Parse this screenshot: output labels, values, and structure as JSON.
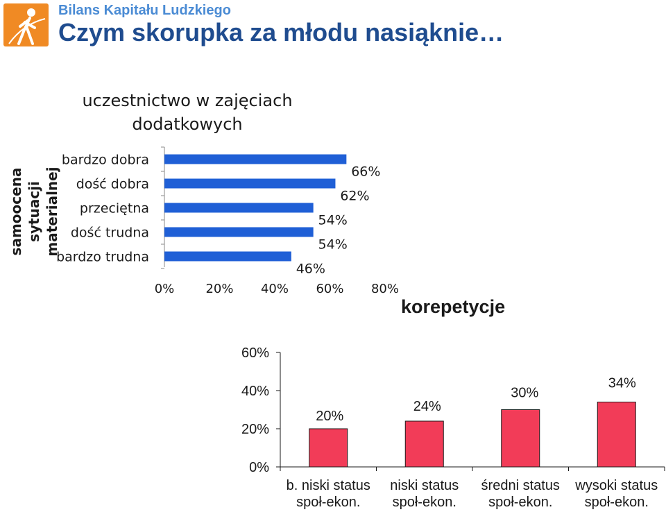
{
  "header": {
    "brand": "Bilans Kapitału Ludzkiego",
    "headline": "Czym skorupka za młodu nasiąknie…",
    "logo_icon": "walking-figure-logo",
    "logo_color": "#f08a24"
  },
  "side_label": "samoocena sytuacji materialnej",
  "chart_data": [
    {
      "type": "bar",
      "orientation": "horizontal",
      "title": "uczestnictwo w zajęciach dodatkowych",
      "ylabel": "samoocena sytuacji materialnej",
      "xlabel": "",
      "categories": [
        "bardzo dobra",
        "dość dobra",
        "przeciętna",
        "dość trudna",
        "bardzo trudna"
      ],
      "values": [
        66,
        62,
        54,
        54,
        46
      ],
      "value_labels": [
        "66%",
        "62%",
        "54%",
        "54%",
        "46%"
      ],
      "xlim": [
        0,
        80
      ],
      "ticks": [
        0,
        20,
        40,
        60,
        80
      ],
      "tick_labels": [
        "0%",
        "20%",
        "40%",
        "60%",
        "80%"
      ],
      "grid": false,
      "color": "#1f5fd6"
    },
    {
      "type": "bar",
      "orientation": "vertical",
      "title": "korepetycje",
      "xlabel": "",
      "ylabel": "",
      "categories": [
        [
          "b. niski status",
          "społ-ekon."
        ],
        [
          "niski status",
          "społ-ekon."
        ],
        [
          "średni status",
          "społ-ekon."
        ],
        [
          "wysoki status",
          "społ-ekon."
        ]
      ],
      "values": [
        20,
        24,
        30,
        34
      ],
      "value_labels": [
        "20%",
        "24%",
        "30%",
        "34%"
      ],
      "ylim": [
        0,
        60
      ],
      "ticks": [
        0,
        20,
        40,
        60
      ],
      "tick_labels": [
        "0%",
        "20%",
        "40%",
        "60%"
      ],
      "grid": false,
      "color": "#f23c58"
    }
  ]
}
